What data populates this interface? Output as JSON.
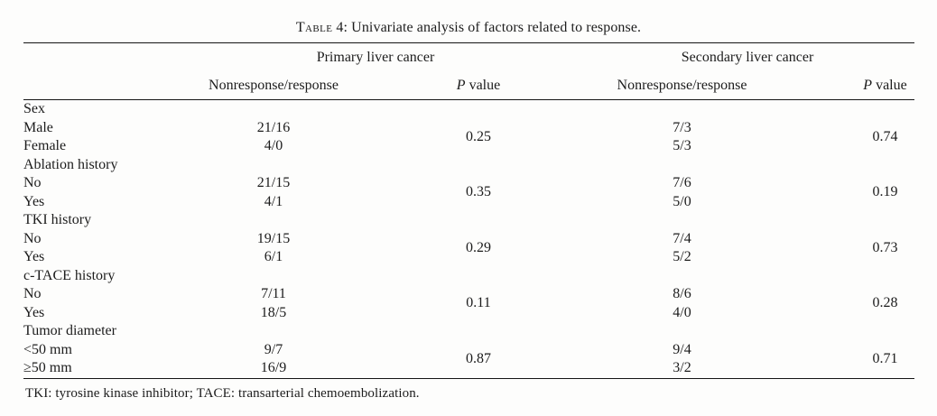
{
  "caption": {
    "label": "Table",
    "rest": " 4: Univariate analysis of factors related to response."
  },
  "table": {
    "column_groups": {
      "primary": "Primary liver cancer",
      "secondary": "Secondary liver cancer"
    },
    "sub_headers": {
      "nonresponse": "Nonresponse/response",
      "p_italic": "P",
      "p_rest": " value"
    },
    "groups": [
      {
        "name": "Sex",
        "rows": [
          {
            "label": "Male",
            "primary_nr": "21/16",
            "secondary_nr": "7/3"
          },
          {
            "label": "Female",
            "primary_nr": "4/0",
            "secondary_nr": "5/3"
          }
        ],
        "primary_p": "0.25",
        "secondary_p": "0.74"
      },
      {
        "name": "Ablation history",
        "rows": [
          {
            "label": "No",
            "primary_nr": "21/15",
            "secondary_nr": "7/6"
          },
          {
            "label": "Yes",
            "primary_nr": "4/1",
            "secondary_nr": "5/0"
          }
        ],
        "primary_p": "0.35",
        "secondary_p": "0.19"
      },
      {
        "name": "TKI history",
        "rows": [
          {
            "label": "No",
            "primary_nr": "19/15",
            "secondary_nr": "7/4"
          },
          {
            "label": "Yes",
            "primary_nr": "6/1",
            "secondary_nr": "5/2"
          }
        ],
        "primary_p": "0.29",
        "secondary_p": "0.73"
      },
      {
        "name": "c-TACE history",
        "rows": [
          {
            "label": "No",
            "primary_nr": "7/11",
            "secondary_nr": "8/6"
          },
          {
            "label": "Yes",
            "primary_nr": "18/5",
            "secondary_nr": "4/0"
          }
        ],
        "primary_p": "0.11",
        "secondary_p": "0.28"
      },
      {
        "name": "Tumor diameter",
        "rows": [
          {
            "label": "<50 mm",
            "primary_nr": "9/7",
            "secondary_nr": "9/4"
          },
          {
            "label": "≥50 mm",
            "primary_nr": "16/9",
            "secondary_nr": "3/2"
          }
        ],
        "primary_p": "0.87",
        "secondary_p": "0.71"
      }
    ]
  },
  "footnote": "TKI: tyrosine kinase inhibitor; TACE: transarterial chemoembolization."
}
